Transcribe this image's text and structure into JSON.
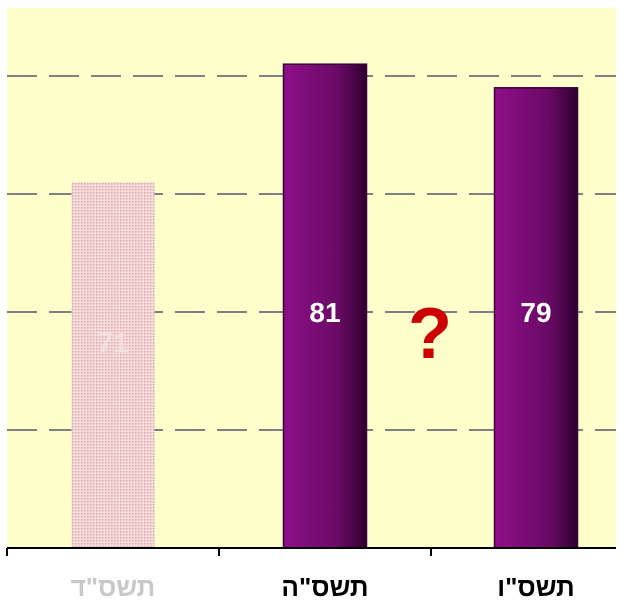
{
  "chart_data": {
    "type": "bar",
    "categories": [
      "תשס\"ד",
      "תשס\"ה",
      "תשס\"ו"
    ],
    "values": [
      71,
      81,
      79
    ],
    "value_labels": [
      "71",
      "81",
      "79"
    ],
    "faded": [
      true,
      false,
      false
    ],
    "annotation": "?",
    "ylim": [
      40,
      81.6
    ],
    "grid": true,
    "gridlines": [
      50,
      60,
      70,
      80
    ],
    "title": "",
    "xlabel": "",
    "ylabel": "",
    "colors": {
      "plot_background": "#ffffcc",
      "bar_top": "#8e0f8a",
      "bar_bottom_edge": "#3a003a",
      "faded_bar": "#e0b7b7",
      "faded_label": "#f2dede",
      "value_label": "#ffffff",
      "category_label": "#000000",
      "faded_category_label": "#c8c8c8",
      "annotation": "#cc0000",
      "gridline": "#7f7f7f",
      "axis": "#000000"
    }
  }
}
